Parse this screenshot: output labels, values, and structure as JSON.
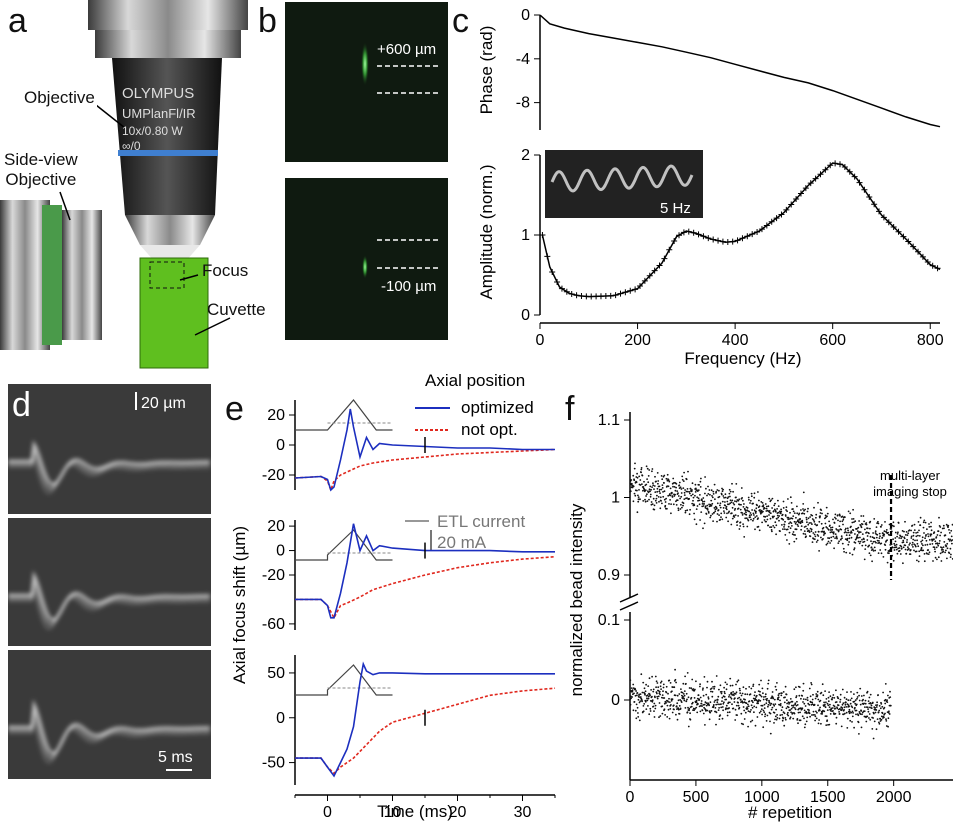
{
  "panels": {
    "a": {
      "letter": "a",
      "objective": "Objective",
      "side_view": "Side-view\nObjective",
      "focus": "Focus",
      "cuvette": "Cuvette",
      "lens_brand": "OLYMPUS",
      "lens_model": "UMPlanFl/IR",
      "lens_spec": "10x/0.80 W",
      "lens_inf": "∞/0"
    },
    "b": {
      "letter": "b",
      "top_label": "+600 µm",
      "bottom_label": "-100 µm"
    },
    "c": {
      "letter": "c",
      "phase_ylabel": "Phase (rad)",
      "amp_ylabel": "Amplitude (norm.)",
      "xlabel": "Frequency (Hz)",
      "inset_label": "5 Hz",
      "phase_ticks": [
        "0",
        "-4",
        "-8"
      ],
      "amp_ticks": [
        "2",
        "1",
        "0"
      ],
      "x_ticks": [
        "0",
        "200",
        "400",
        "600",
        "800"
      ]
    },
    "d": {
      "letter": "d",
      "scale_top": "20 µm",
      "scale_bottom": "5 ms"
    },
    "e": {
      "letter": "e",
      "legend_title": "Axial position",
      "legend_opt": "optimized",
      "legend_notopt": "not opt.",
      "etl": "ETL current",
      "etl_scale": "20 mA",
      "ylabel": "Axial focus shift (µm)",
      "xlabel": "Time (ms)",
      "ticks1": [
        "20",
        "0",
        "-20"
      ],
      "ticks2": [
        "20",
        "0",
        "-20",
        "-60"
      ],
      "ticks3": [
        "50",
        "0",
        "-50"
      ],
      "x_ticks": [
        "0",
        "10",
        "20",
        "30"
      ]
    },
    "f": {
      "letter": "f",
      "ylabel": "normalized bead intensity",
      "xlabel": "# repetition",
      "annot": "multi-layer\nimaging stop",
      "y_ticks_top": [
        "1.1",
        "1",
        "0.9"
      ],
      "y_ticks_bot": [
        "0.1",
        "0"
      ],
      "x_ticks": [
        "0",
        "500",
        "1000",
        "1500",
        "2000"
      ]
    }
  },
  "chart_data": [
    {
      "type": "line",
      "panel": "c-top",
      "xlabel": "",
      "ylabel": "Phase (rad)",
      "xlim": [
        0,
        820
      ],
      "ylim": [
        -10.5,
        0
      ],
      "x": [
        0,
        20,
        50,
        100,
        150,
        200,
        250,
        300,
        350,
        400,
        450,
        500,
        550,
        600,
        650,
        700,
        750,
        800,
        820
      ],
      "y": [
        0,
        -0.8,
        -1.2,
        -1.7,
        -2.1,
        -2.5,
        -2.9,
        -3.4,
        -3.9,
        -4.5,
        -5.1,
        -5.7,
        -6.2,
        -6.9,
        -7.7,
        -8.5,
        -9.3,
        -10.0,
        -10.2
      ]
    },
    {
      "type": "line",
      "panel": "c-bottom",
      "xlabel": "Frequency (Hz)",
      "ylabel": "Amplitude (norm.)",
      "xlim": [
        0,
        820
      ],
      "ylim": [
        0,
        2
      ],
      "x": [
        5,
        20,
        40,
        60,
        80,
        100,
        150,
        200,
        250,
        280,
        300,
        320,
        350,
        380,
        400,
        450,
        500,
        550,
        600,
        620,
        650,
        700,
        750,
        800,
        820
      ],
      "y": [
        1.0,
        0.6,
        0.35,
        0.27,
        0.24,
        0.23,
        0.24,
        0.33,
        0.65,
        0.98,
        1.05,
        1.02,
        0.95,
        0.91,
        0.92,
        1.05,
        1.28,
        1.62,
        1.9,
        1.88,
        1.7,
        1.25,
        0.95,
        0.63,
        0.57
      ]
    },
    {
      "type": "line",
      "panel": "e-1",
      "xlabel": "",
      "ylabel": "Axial focus shift (µm)",
      "xlim": [
        -5,
        35
      ],
      "ylim": [
        -30,
        30
      ],
      "series": [
        {
          "name": "optimized",
          "x": [
            -5,
            -1,
            0,
            0.5,
            1,
            2,
            3,
            3.5,
            4,
            5,
            6,
            7,
            8,
            10,
            15,
            20,
            25,
            30,
            35
          ],
          "y": [
            -22,
            -21,
            -23,
            -30,
            -28,
            -10,
            10,
            24,
            12,
            -8,
            5,
            -3,
            1,
            0,
            -1,
            -2,
            -2,
            -3,
            -3
          ]
        },
        {
          "name": "not opt.",
          "x": [
            -5,
            -1,
            0,
            0.5,
            1,
            2,
            3,
            5,
            7,
            10,
            15,
            20,
            25,
            30,
            35
          ],
          "y": [
            -22,
            -21,
            -24,
            -30,
            -24,
            -20,
            -18,
            -14,
            -12,
            -10,
            -8,
            -6,
            -5,
            -4,
            -3
          ]
        }
      ]
    },
    {
      "type": "line",
      "panel": "e-2",
      "xlabel": "",
      "ylabel": "Axial focus shift (µm)",
      "xlim": [
        -5,
        35
      ],
      "ylim": [
        -65,
        25
      ],
      "series": [
        {
          "name": "optimized",
          "x": [
            -5,
            -1,
            0,
            0.5,
            1,
            2,
            3,
            4,
            5,
            6,
            7,
            8,
            10,
            15,
            20,
            25,
            30,
            35
          ],
          "y": [
            -40,
            -40,
            -45,
            -55,
            -55,
            -35,
            -10,
            22,
            0,
            12,
            0,
            4,
            2,
            0,
            0,
            0,
            -1,
            -1
          ]
        },
        {
          "name": "not opt.",
          "x": [
            -5,
            -1,
            0,
            1,
            2,
            3,
            5,
            7,
            10,
            15,
            20,
            25,
            30,
            35
          ],
          "y": [
            -40,
            -40,
            -45,
            -55,
            -45,
            -43,
            -38,
            -32,
            -27,
            -20,
            -14,
            -10,
            -7,
            -5
          ]
        }
      ]
    },
    {
      "type": "line",
      "panel": "e-3",
      "xlabel": "Time (ms)",
      "ylabel": "Axial focus shift (µm)",
      "xlim": [
        -5,
        35
      ],
      "ylim": [
        -75,
        70
      ],
      "series": [
        {
          "name": "optimized",
          "x": [
            -5,
            -1,
            0,
            1,
            2,
            3,
            4,
            5,
            5.5,
            6,
            7,
            8,
            10,
            15,
            20,
            25,
            30,
            35
          ],
          "y": [
            -45,
            -45,
            -55,
            -65,
            -50,
            -35,
            -10,
            40,
            60,
            52,
            48,
            50,
            50,
            49,
            49,
            49,
            49,
            49
          ]
        },
        {
          "name": "not opt.",
          "x": [
            -5,
            -1,
            0,
            1,
            2,
            4,
            6,
            8,
            10,
            15,
            20,
            25,
            30,
            35
          ],
          "y": [
            -45,
            -45,
            -55,
            -62,
            -55,
            -45,
            -30,
            -15,
            -5,
            5,
            15,
            25,
            30,
            33
          ]
        }
      ]
    },
    {
      "type": "scatter",
      "panel": "f",
      "xlabel": "# repetition",
      "ylabel": "normalized bead intensity",
      "xlim": [
        0,
        2450
      ],
      "series": [
        {
          "name": "top",
          "trend_x": [
            0,
            500,
            1000,
            1500,
            2000,
            2450
          ],
          "trend_y": [
            1.02,
            1.0,
            0.98,
            0.96,
            0.945,
            0.945
          ],
          "noise": 0.025
        },
        {
          "name": "bottom",
          "trend_x": [
            0,
            500,
            1000,
            1500,
            1980
          ],
          "trend_y": [
            0.005,
            0.0,
            -0.005,
            -0.01,
            -0.01
          ],
          "noise": 0.025
        }
      ]
    }
  ]
}
